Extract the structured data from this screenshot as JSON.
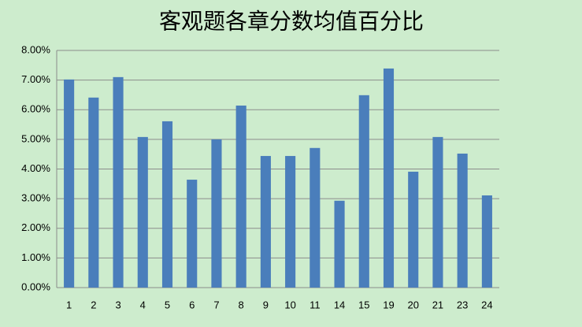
{
  "chart_data": {
    "type": "bar",
    "title": "客观题各章分数均值百分比",
    "categories": [
      "1",
      "2",
      "3",
      "4",
      "5",
      "6",
      "7",
      "8",
      "9",
      "10",
      "11",
      "14",
      "15",
      "19",
      "20",
      "21",
      "23",
      "24"
    ],
    "values": [
      7.02,
      6.41,
      7.1,
      5.08,
      5.61,
      3.64,
      5.0,
      6.14,
      4.44,
      4.44,
      4.71,
      2.93,
      6.49,
      7.39,
      3.91,
      5.08,
      4.52,
      3.11
    ],
    "color": "#4a7ebb",
    "ylim": [
      0,
      8
    ],
    "yticks": [
      {
        "value": 0,
        "label": "0.00%"
      },
      {
        "value": 1,
        "label": "1.00%"
      },
      {
        "value": 2,
        "label": "2.00%"
      },
      {
        "value": 3,
        "label": "3.00%"
      },
      {
        "value": 4,
        "label": "4.00%"
      },
      {
        "value": 5,
        "label": "5.00%"
      },
      {
        "value": 6,
        "label": "6.00%"
      },
      {
        "value": 7,
        "label": "7.00%"
      },
      {
        "value": 8,
        "label": "8.00%"
      }
    ],
    "grid": true
  }
}
